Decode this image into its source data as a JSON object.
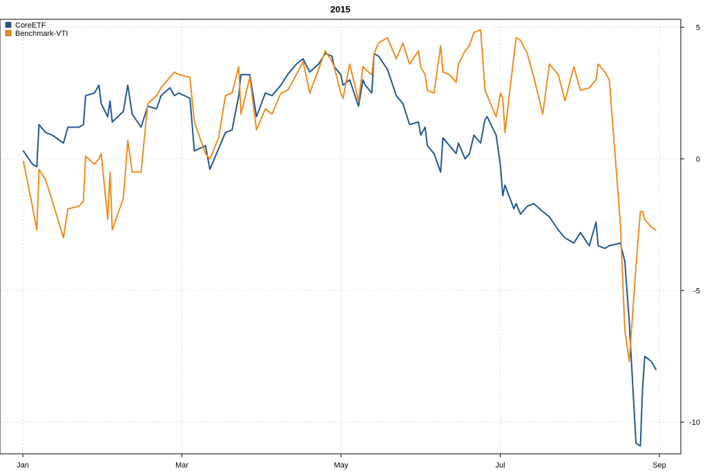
{
  "chart_data": {
    "type": "line",
    "title": "2015",
    "xlabel": "",
    "ylabel": "",
    "x_ticks": [
      "Jan",
      "Mar",
      "May",
      "Jul",
      "Sep"
    ],
    "y_ticks": [
      5,
      0,
      -5,
      -10
    ],
    "ylim": [
      -11.2,
      5.3
    ],
    "y_axis_side": "right",
    "grid": true,
    "legend_position": "top-left",
    "series": [
      {
        "name": "CoreETF",
        "color": "#1f5591",
        "points": [
          [
            "2015-01-02",
            0.3
          ],
          [
            "2015-01-06",
            -0.2
          ],
          [
            "2015-01-08",
            -0.3
          ],
          [
            "2015-01-09",
            1.3
          ],
          [
            "2015-01-12",
            1.0
          ],
          [
            "2015-01-15",
            0.9
          ],
          [
            "2015-01-20",
            0.6
          ],
          [
            "2015-01-22",
            1.2
          ],
          [
            "2015-01-27",
            1.2
          ],
          [
            "2015-01-29",
            1.3
          ],
          [
            "2015-01-30",
            2.4
          ],
          [
            "2015-02-03",
            2.5
          ],
          [
            "2015-02-05",
            2.8
          ],
          [
            "2015-02-06",
            2.1
          ],
          [
            "2015-02-09",
            1.6
          ],
          [
            "2015-02-10",
            2.2
          ],
          [
            "2015-02-11",
            1.4
          ],
          [
            "2015-02-16",
            1.8
          ],
          [
            "2015-02-18",
            2.8
          ],
          [
            "2015-02-20",
            1.7
          ],
          [
            "2015-02-24",
            1.2
          ],
          [
            "2015-02-27",
            2.0
          ],
          [
            "2015-03-03",
            1.9
          ],
          [
            "2015-03-05",
            2.4
          ],
          [
            "2015-03-09",
            2.7
          ],
          [
            "2015-03-11",
            2.4
          ],
          [
            "2015-03-13",
            2.5
          ],
          [
            "2015-03-18",
            2.3
          ],
          [
            "2015-03-20",
            0.3
          ],
          [
            "2015-03-25",
            0.5
          ],
          [
            "2015-03-27",
            -0.4
          ],
          [
            "2015-03-31",
            0.4
          ],
          [
            "2015-04-03",
            1.0
          ],
          [
            "2015-04-06",
            1.1
          ],
          [
            "2015-04-09",
            2.4
          ],
          [
            "2015-04-10",
            3.2
          ],
          [
            "2015-04-14",
            3.2
          ],
          [
            "2015-04-17",
            1.6
          ],
          [
            "2015-04-21",
            2.5
          ],
          [
            "2015-04-24",
            2.4
          ],
          [
            "2015-04-28",
            2.8
          ],
          [
            "2015-05-01",
            3.2
          ],
          [
            "2015-05-05",
            3.6
          ],
          [
            "2015-05-08",
            3.8
          ],
          [
            "2015-05-11",
            3.3
          ],
          [
            "2015-05-15",
            3.6
          ],
          [
            "2015-05-18",
            4.0
          ],
          [
            "2015-05-21",
            3.9
          ],
          [
            "2015-05-22",
            3.5
          ],
          [
            "2015-05-25",
            3.2
          ],
          [
            "2015-05-26",
            2.8
          ],
          [
            "2015-05-29",
            3.0
          ],
          [
            "2015-06-02",
            2.0
          ],
          [
            "2015-06-04",
            3.0
          ],
          [
            "2015-06-05",
            2.8
          ],
          [
            "2015-06-08",
            2.5
          ],
          [
            "2015-06-09",
            4.0
          ],
          [
            "2015-06-11",
            3.9
          ],
          [
            "2015-06-15",
            3.4
          ],
          [
            "2015-06-19",
            2.4
          ],
          [
            "2015-06-22",
            2.1
          ],
          [
            "2015-06-25",
            1.3
          ],
          [
            "2015-06-29",
            1.4
          ],
          [
            "2015-06-30",
            0.9
          ],
          [
            "2015-07-02",
            1.2
          ],
          [
            "2015-07-03",
            0.5
          ],
          [
            "2015-07-06",
            0.2
          ],
          [
            "2015-07-09",
            -0.5
          ],
          [
            "2015-07-10",
            0.8
          ],
          [
            "2015-07-13",
            0.5
          ],
          [
            "2015-07-16",
            0.2
          ],
          [
            "2015-07-17",
            0.6
          ],
          [
            "2015-07-20",
            0.0
          ],
          [
            "2015-07-22",
            0.2
          ],
          [
            "2015-07-24",
            0.9
          ],
          [
            "2015-07-27",
            0.6
          ],
          [
            "2015-07-29",
            1.5
          ],
          [
            "2015-07-30",
            1.6
          ],
          [
            "2015-08-03",
            0.9
          ],
          [
            "2015-08-05",
            -0.3
          ],
          [
            "2015-08-06",
            -1.4
          ],
          [
            "2015-08-07",
            -1.0
          ],
          [
            "2015-08-11",
            -1.9
          ],
          [
            "2015-08-12",
            -1.7
          ],
          [
            "2015-08-14",
            -2.1
          ],
          [
            "2015-08-17",
            -1.8
          ],
          [
            "2015-08-20",
            -1.7
          ],
          [
            "2015-08-24",
            -2.0
          ],
          [
            "2015-08-27",
            -2.2
          ],
          [
            "2015-08-31",
            -2.7
          ],
          [
            "2015-09-03",
            -3.0
          ],
          [
            "2015-09-07",
            -3.2
          ],
          [
            "2015-09-10",
            -2.8
          ],
          [
            "2015-09-14",
            -3.3
          ],
          [
            "2015-09-17",
            -2.4
          ],
          [
            "2015-09-18",
            -3.3
          ],
          [
            "2015-09-21",
            -3.4
          ],
          [
            "2015-09-23",
            -3.3
          ],
          [
            "2015-09-28",
            -3.2
          ],
          [
            "2015-09-30",
            -3.9
          ],
          [
            "2015-10-02",
            -6.2
          ],
          [
            "2015-10-05",
            -10.8
          ],
          [
            "2015-10-07",
            -10.9
          ],
          [
            "2015-10-08",
            -8.7
          ],
          [
            "2015-10-09",
            -7.5
          ],
          [
            "2015-10-12",
            -7.7
          ],
          [
            "2015-10-14",
            -8.0
          ]
        ]
      },
      {
        "name": "Benchmark-VTI",
        "color": "#f08a1c",
        "points": [
          [
            "2015-01-02",
            -0.1
          ],
          [
            "2015-01-06",
            -1.8
          ],
          [
            "2015-01-08",
            -2.7
          ],
          [
            "2015-01-09",
            -0.4
          ],
          [
            "2015-01-12",
            -0.8
          ],
          [
            "2015-01-15",
            -1.6
          ],
          [
            "2015-01-20",
            -3.0
          ],
          [
            "2015-01-22",
            -1.9
          ],
          [
            "2015-01-27",
            -1.8
          ],
          [
            "2015-01-29",
            -1.6
          ],
          [
            "2015-01-30",
            0.1
          ],
          [
            "2015-02-03",
            -0.2
          ],
          [
            "2015-02-05",
            0.0
          ],
          [
            "2015-02-06",
            0.2
          ],
          [
            "2015-02-09",
            -2.3
          ],
          [
            "2015-02-10",
            -0.5
          ],
          [
            "2015-02-11",
            -2.7
          ],
          [
            "2015-02-16",
            -1.5
          ],
          [
            "2015-02-18",
            0.7
          ],
          [
            "2015-02-20",
            -0.5
          ],
          [
            "2015-02-24",
            -0.5
          ],
          [
            "2015-02-27",
            2.1
          ],
          [
            "2015-03-03",
            2.4
          ],
          [
            "2015-03-05",
            2.7
          ],
          [
            "2015-03-09",
            3.1
          ],
          [
            "2015-03-11",
            3.3
          ],
          [
            "2015-03-13",
            3.2
          ],
          [
            "2015-03-18",
            3.1
          ],
          [
            "2015-03-20",
            1.4
          ],
          [
            "2015-03-25",
            0.2
          ],
          [
            "2015-03-27",
            0.0
          ],
          [
            "2015-03-31",
            0.8
          ],
          [
            "2015-04-03",
            2.4
          ],
          [
            "2015-04-06",
            2.5
          ],
          [
            "2015-04-09",
            3.5
          ],
          [
            "2015-04-10",
            1.7
          ],
          [
            "2015-04-14",
            3.1
          ],
          [
            "2015-04-17",
            1.1
          ],
          [
            "2015-04-21",
            1.9
          ],
          [
            "2015-04-24",
            1.7
          ],
          [
            "2015-04-28",
            2.5
          ],
          [
            "2015-05-01",
            2.6
          ],
          [
            "2015-05-05",
            3.2
          ],
          [
            "2015-05-08",
            3.7
          ],
          [
            "2015-05-11",
            2.5
          ],
          [
            "2015-05-15",
            3.4
          ],
          [
            "2015-05-18",
            4.1
          ],
          [
            "2015-05-21",
            3.7
          ],
          [
            "2015-05-22",
            3.5
          ],
          [
            "2015-05-25",
            2.5
          ],
          [
            "2015-05-26",
            2.3
          ],
          [
            "2015-05-29",
            3.6
          ],
          [
            "2015-06-02",
            2.2
          ],
          [
            "2015-06-04",
            3.5
          ],
          [
            "2015-06-05",
            3.4
          ],
          [
            "2015-06-08",
            3.2
          ],
          [
            "2015-06-09",
            4.0
          ],
          [
            "2015-06-11",
            4.4
          ],
          [
            "2015-06-15",
            4.6
          ],
          [
            "2015-06-19",
            3.8
          ],
          [
            "2015-06-22",
            4.4
          ],
          [
            "2015-06-25",
            3.6
          ],
          [
            "2015-06-29",
            4.1
          ],
          [
            "2015-06-30",
            3.5
          ],
          [
            "2015-07-02",
            3.2
          ],
          [
            "2015-07-03",
            2.6
          ],
          [
            "2015-07-06",
            2.5
          ],
          [
            "2015-07-09",
            4.3
          ],
          [
            "2015-07-10",
            3.3
          ],
          [
            "2015-07-13",
            3.2
          ],
          [
            "2015-07-16",
            2.9
          ],
          [
            "2015-07-17",
            3.6
          ],
          [
            "2015-07-20",
            4.1
          ],
          [
            "2015-07-22",
            4.3
          ],
          [
            "2015-07-24",
            4.8
          ],
          [
            "2015-07-27",
            4.9
          ],
          [
            "2015-07-29",
            2.6
          ],
          [
            "2015-07-30",
            2.4
          ],
          [
            "2015-08-03",
            1.6
          ],
          [
            "2015-08-05",
            2.5
          ],
          [
            "2015-08-06",
            2.3
          ],
          [
            "2015-08-07",
            1.0
          ],
          [
            "2015-08-11",
            3.9
          ],
          [
            "2015-08-12",
            4.6
          ],
          [
            "2015-08-14",
            4.5
          ],
          [
            "2015-08-17",
            4.0
          ],
          [
            "2015-08-20",
            3.1
          ],
          [
            "2015-08-24",
            1.7
          ],
          [
            "2015-08-27",
            3.6
          ],
          [
            "2015-08-31",
            3.2
          ],
          [
            "2015-09-03",
            2.2
          ],
          [
            "2015-09-07",
            3.5
          ],
          [
            "2015-09-10",
            2.6
          ],
          [
            "2015-09-14",
            2.7
          ],
          [
            "2015-09-17",
            3.0
          ],
          [
            "2015-09-18",
            3.6
          ],
          [
            "2015-09-21",
            3.3
          ],
          [
            "2015-09-23",
            3.0
          ],
          [
            "2015-09-28",
            -2.5
          ],
          [
            "2015-09-30",
            -6.5
          ],
          [
            "2015-10-02",
            -7.7
          ],
          [
            "2015-10-05",
            -4.1
          ],
          [
            "2015-10-07",
            -2.0
          ],
          [
            "2015-10-08",
            -2.0
          ],
          [
            "2015-10-09",
            -2.3
          ],
          [
            "2015-10-12",
            -2.6
          ],
          [
            "2015-10-14",
            -2.7
          ]
        ]
      }
    ]
  }
}
